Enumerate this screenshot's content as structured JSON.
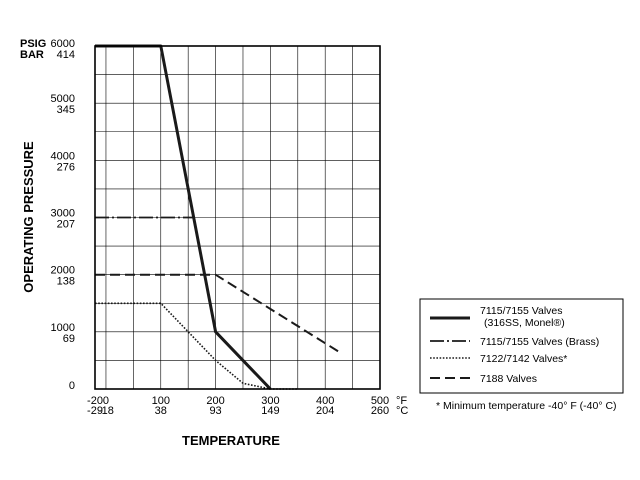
{
  "chart_data": {
    "type": "line",
    "xlabel": "TEMPERATURE",
    "ylabel": "OPERATING PRESSURE",
    "xlim": [
      -20,
      500
    ],
    "ylim": [
      0,
      6000
    ],
    "grid": true,
    "legend_position": "right",
    "y_unit_primary": "PSIG",
    "y_unit_secondary": "BAR",
    "x_unit_primary": "°F",
    "x_unit_secondary": "°C",
    "y_ticks": [
      {
        "psig": "0",
        "bar": ""
      },
      {
        "psig": "1000",
        "bar": "69"
      },
      {
        "psig": "2000",
        "bar": "138"
      },
      {
        "psig": "3000",
        "bar": "207"
      },
      {
        "psig": "4000",
        "bar": "276"
      },
      {
        "psig": "5000",
        "bar": "345"
      },
      {
        "psig": "6000",
        "bar": "414"
      }
    ],
    "x_ticks": [
      {
        "f": "-20",
        "c": "-29"
      },
      {
        "f": "0",
        "c": "-18"
      },
      {
        "f": "100",
        "c": "38"
      },
      {
        "f": "200",
        "c": "93"
      },
      {
        "f": "300",
        "c": "149"
      },
      {
        "f": "400",
        "c": "204"
      },
      {
        "f": "500",
        "c": "260"
      }
    ],
    "series": [
      {
        "name": "7115/7155 Valves (316SS, Monel®)",
        "style": "solid",
        "color": "#1a1a1a",
        "points": [
          [
            -20,
            6000
          ],
          [
            100,
            6000
          ],
          [
            200,
            1000
          ],
          [
            250,
            500
          ],
          [
            300,
            0
          ]
        ]
      },
      {
        "name": "7115/7155 Valves (Brass)",
        "style": "dashdot",
        "color": "#1a1a1a",
        "points": [
          [
            -20,
            3000
          ],
          [
            160,
            3000
          ]
        ]
      },
      {
        "name": "7122/7142 Valves*",
        "style": "dotted",
        "color": "#1a1a1a",
        "points": [
          [
            -20,
            1500
          ],
          [
            100,
            1500
          ],
          [
            150,
            1000
          ],
          [
            200,
            500
          ],
          [
            250,
            100
          ],
          [
            300,
            0
          ],
          [
            350,
            0
          ]
        ]
      },
      {
        "name": "7188 Valves",
        "style": "dashed",
        "color": "#1a1a1a",
        "points": [
          [
            -20,
            2000
          ],
          [
            200,
            2000
          ],
          [
            425,
            650
          ]
        ]
      }
    ],
    "legend": {
      "entries": [
        {
          "line1": "7115/7155 Valves",
          "line2": "(316SS, Monel®)",
          "style": "solid"
        },
        {
          "line1": "7115/7155 Valves (Brass)",
          "line2": "",
          "style": "dashdot"
        },
        {
          "line1": "7122/7142 Valves*",
          "line2": "",
          "style": "dotted"
        },
        {
          "line1": "7188 Valves",
          "line2": "",
          "style": "dashed"
        }
      ]
    },
    "footnote": "* Minimum temperature -40° F (-40° C)"
  }
}
